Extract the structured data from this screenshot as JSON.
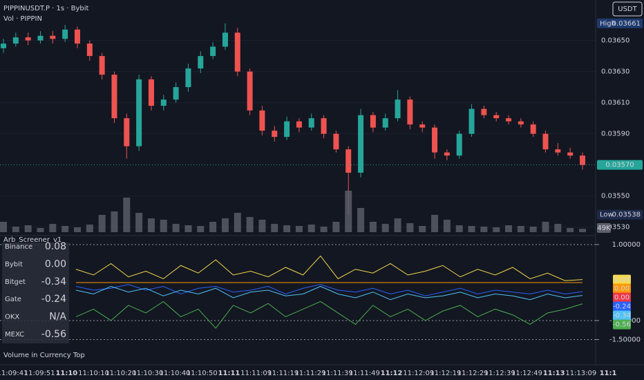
{
  "header": {
    "symbol": "PIPPINUSDT.P · 1s · Bybit",
    "volume_title": "Vol · PIPPIN",
    "currency": "USDT"
  },
  "chart_data": [
    {
      "type": "candlestick",
      "up_color": "#26a69a",
      "down_color": "#ef5350",
      "open": [
        0.03645,
        0.03648,
        0.03652,
        0.0365,
        0.03653,
        0.03651,
        0.03657,
        0.03648,
        0.0364,
        0.03628,
        0.036,
        0.03582,
        0.03625,
        0.03608,
        0.03612,
        0.0362,
        0.03632,
        0.0364,
        0.03646,
        0.03655,
        0.0363,
        0.03605,
        0.03592,
        0.03588,
        0.03598,
        0.03594,
        0.036,
        0.0359,
        0.0358,
        0.03565,
        0.03602,
        0.03594,
        0.036,
        0.03612,
        0.03596,
        0.03594,
        0.03578,
        0.03576,
        0.0359,
        0.03606,
        0.03602,
        0.036,
        0.03598,
        0.03596,
        0.0359,
        0.0358,
        0.03578,
        0.03576
      ],
      "high": [
        0.03651,
        0.03655,
        0.03655,
        0.03656,
        0.03656,
        0.0366,
        0.03659,
        0.0365,
        0.03642,
        0.0363,
        0.03603,
        0.03628,
        0.03627,
        0.03615,
        0.03623,
        0.03635,
        0.03643,
        0.03649,
        0.03661,
        0.03658,
        0.03632,
        0.03608,
        0.03595,
        0.03601,
        0.036,
        0.03603,
        0.03602,
        0.03592,
        0.03582,
        0.03606,
        0.03604,
        0.03603,
        0.03618,
        0.03614,
        0.03598,
        0.03596,
        0.0358,
        0.03592,
        0.03609,
        0.03608,
        0.03604,
        0.03602,
        0.036,
        0.03598,
        0.03592,
        0.03584,
        0.03581,
        0.03578
      ],
      "low": [
        0.03642,
        0.03646,
        0.03647,
        0.03648,
        0.03648,
        0.03649,
        0.03645,
        0.03637,
        0.03625,
        0.03597,
        0.03574,
        0.03579,
        0.03605,
        0.03605,
        0.0361,
        0.03617,
        0.03629,
        0.03638,
        0.03644,
        0.03627,
        0.03602,
        0.03589,
        0.03585,
        0.03586,
        0.03591,
        0.03592,
        0.03587,
        0.03578,
        0.03538,
        0.03562,
        0.03591,
        0.03592,
        0.03598,
        0.03593,
        0.03591,
        0.03574,
        0.03573,
        0.03574,
        0.03588,
        0.036,
        0.03598,
        0.03596,
        0.03594,
        0.03588,
        0.03578,
        0.03576,
        0.03574,
        0.03567
      ],
      "close": [
        0.03648,
        0.03652,
        0.0365,
        0.03653,
        0.03651,
        0.03657,
        0.03648,
        0.0364,
        0.03628,
        0.036,
        0.03582,
        0.03625,
        0.03608,
        0.03612,
        0.0362,
        0.03632,
        0.0364,
        0.03646,
        0.03655,
        0.0363,
        0.03605,
        0.03592,
        0.03588,
        0.03598,
        0.03594,
        0.036,
        0.0359,
        0.0358,
        0.03565,
        0.03602,
        0.03594,
        0.036,
        0.03612,
        0.03596,
        0.03594,
        0.03578,
        0.03576,
        0.0359,
        0.03606,
        0.03602,
        0.036,
        0.03598,
        0.03596,
        0.0359,
        0.0358,
        0.03578,
        0.03576,
        0.0357
      ],
      "ylim": [
        0.03525,
        0.03676
      ],
      "yticks": [
        {
          "value": 0.0365,
          "label": "0.03650"
        },
        {
          "value": 0.0363,
          "label": "0.03630"
        },
        {
          "value": 0.0361,
          "label": "0.03610"
        },
        {
          "value": 0.0359,
          "label": "0.03590"
        },
        {
          "value": 0.0355,
          "label": "0.03550"
        },
        {
          "value": 0.0353,
          "label": "0.03530"
        }
      ],
      "high_marker": {
        "label": "High",
        "value": 0.03661,
        "value_label": "0.03661"
      },
      "low_marker": {
        "label": "Low",
        "value": 0.03538,
        "value_label": "0.03538"
      },
      "last": {
        "value": 0.0357,
        "value_label": "0.03570"
      }
    },
    {
      "type": "bar",
      "color": "#5d606b",
      "values": [
        150000,
        80000,
        100000,
        60000,
        120000,
        90000,
        70000,
        110000,
        250000,
        300000,
        500000,
        280000,
        200000,
        180000,
        120000,
        100000,
        90000,
        150000,
        200000,
        280000,
        220000,
        180000,
        120000,
        100000,
        90000,
        110000,
        80000,
        150000,
        600000,
        350000,
        150000,
        120000,
        200000,
        130000,
        90000,
        250000,
        180000,
        100000,
        90000,
        80000,
        70000,
        100000,
        90000,
        80000,
        150000,
        120000,
        60000,
        49000
      ],
      "ylim": [
        0,
        650000
      ],
      "last": {
        "value": 49000,
        "value_label": "49K"
      }
    },
    {
      "type": "line",
      "title": "Arb_Screener_v1",
      "ylim": [
        -2.11,
        1.2
      ],
      "yticks": [
        {
          "value": 1,
          "label": "1.00000"
        },
        {
          "value": -1,
          "label": "-1.00000"
        },
        {
          "value": -1.5,
          "label": "-1.50000"
        }
      ],
      "series": [
        {
          "name": "Binance",
          "color": "#f5d94a",
          "last_label": "0.08",
          "values": [
            0.35,
            0.2,
            0.5,
            0.15,
            0.3,
            0.1,
            0.45,
            0.25,
            0.6,
            0.2,
            0.3,
            0.15,
            0.4,
            0.2,
            0.7,
            0.1,
            0.35,
            0.25,
            0.5,
            0.2,
            0.3,
            0.45,
            0.15,
            0.35,
            0.2,
            0.4,
            0.1,
            0.25,
            0.05,
            0.08
          ]
        },
        {
          "name": "Bybit",
          "color": "#ff9800",
          "last_label": "0.00",
          "values": [
            0,
            0,
            0,
            0,
            0,
            0,
            0,
            0,
            0,
            0,
            0,
            0,
            0,
            0,
            0,
            0,
            0,
            0,
            0,
            0,
            0,
            0,
            0,
            0,
            0,
            0,
            0,
            0,
            0,
            0
          ]
        },
        {
          "name": "Gate",
          "color": "#2962ff",
          "last_label": "-0.24",
          "values": [
            -0.1,
            -0.2,
            -0.15,
            -0.05,
            -0.2,
            -0.1,
            -0.3,
            -0.15,
            -0.1,
            -0.25,
            -0.2,
            -0.1,
            -0.3,
            -0.15,
            -0.05,
            -0.2,
            -0.25,
            -0.15,
            -0.3,
            -0.2,
            -0.35,
            -0.25,
            -0.15,
            -0.3,
            -0.2,
            -0.25,
            -0.3,
            -0.2,
            -0.3,
            -0.24
          ]
        },
        {
          "name": "Bitget",
          "color": "#4fc3f7",
          "last_label": "-0.34",
          "values": [
            -0.2,
            -0.3,
            -0.1,
            -0.25,
            -0.15,
            -0.35,
            -0.2,
            -0.3,
            -0.15,
            -0.4,
            -0.25,
            -0.2,
            -0.35,
            -0.3,
            -0.1,
            -0.3,
            -0.4,
            -0.25,
            -0.45,
            -0.3,
            -0.4,
            -0.35,
            -0.25,
            -0.4,
            -0.3,
            -0.35,
            -0.45,
            -0.3,
            -0.4,
            -0.34
          ]
        },
        {
          "name": "MEXC",
          "color": "#4caf50",
          "last_label": "-0.56",
          "values": [
            -0.9,
            -0.7,
            -1.0,
            -0.6,
            -0.8,
            -0.5,
            -0.9,
            -0.7,
            -1.2,
            -0.6,
            -0.8,
            -0.55,
            -0.9,
            -0.7,
            -0.5,
            -0.8,
            -1.1,
            -0.6,
            -0.9,
            -0.7,
            -1.0,
            -0.75,
            -0.6,
            -0.9,
            -0.7,
            -0.85,
            -1.1,
            -0.8,
            -0.7,
            -0.56
          ]
        }
      ],
      "baseline": {
        "value": 0,
        "value_label": "0.00",
        "color": "#f23645"
      }
    }
  ],
  "screener_table": {
    "rows": [
      {
        "name": "Binance",
        "value": "0.08",
        "color": "#f5d94a"
      },
      {
        "name": "Bybit",
        "value": "0.00",
        "color": "#ff9800"
      },
      {
        "name": "Bitget",
        "value": "-0.34",
        "color": "#4fc3f7"
      },
      {
        "name": "Gate",
        "value": "-0.24",
        "color": "#2962ff"
      },
      {
        "name": "OKX",
        "value": "N/A",
        "color": "#787b86"
      },
      {
        "name": "MEXC",
        "value": "-0.56",
        "color": "#4caf50"
      }
    ]
  },
  "footer": "Volume in Currency Top",
  "time_axis": [
    "11:09:41",
    "11:09:51",
    "11:10",
    "11:10:10",
    "11:10:20",
    "11:10:30",
    "11:10:40",
    "11:10:50",
    "11:11",
    "11:11:09",
    "11:11:19",
    "11:11:29",
    "11:11:39",
    "11:11:49",
    "11:12",
    "11:12:09",
    "11:12:19",
    "11:12:29",
    "11:12:39",
    "11:12:49",
    "11:13",
    "11:13:09",
    "11:1"
  ]
}
